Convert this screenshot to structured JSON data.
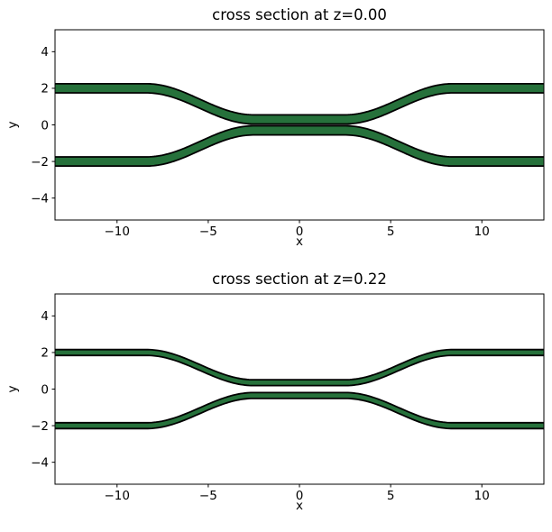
{
  "figure": {
    "background": "#ffffff",
    "edge_color": "#000000",
    "waveguide_fill": "#26713b"
  },
  "chart_data": [
    {
      "type": "area",
      "title": "cross section at z=0.00",
      "xlabel": "x",
      "ylabel": "y",
      "z": "0.00",
      "xlim": [
        -13.4,
        13.4
      ],
      "ylim": [
        -5.2,
        5.2
      ],
      "xticks": [
        -10,
        -5,
        0,
        5,
        10
      ],
      "xtick_labels": [
        "−10",
        "−5",
        "0",
        "5",
        "10"
      ],
      "yticks": [
        4,
        2,
        0,
        -2,
        -4
      ],
      "ytick_labels": [
        "4",
        "2",
        "0",
        "−2",
        "−4"
      ],
      "grid": false,
      "legend": null,
      "series_description": "two mirrored directional-coupler waveguide bands, green fill with black outline",
      "waveguides": {
        "fill": "#26713b",
        "edge": "#000000",
        "outer_center_y": 2.0,
        "inner_center_y": 0.3,
        "band_width": 0.5,
        "coupling_half_length_x": 2.5,
        "sbend_end_x": 8.4
      }
    },
    {
      "type": "area",
      "title": "cross section at z=0.22",
      "xlabel": "x",
      "ylabel": "y",
      "z": "0.22",
      "xlim": [
        -13.4,
        13.4
      ],
      "ylim": [
        -5.2,
        5.2
      ],
      "xticks": [
        -10,
        -5,
        0,
        5,
        10
      ],
      "xtick_labels": [
        "−10",
        "−5",
        "0",
        "5",
        "10"
      ],
      "yticks": [
        4,
        2,
        0,
        -2,
        -4
      ],
      "ytick_labels": [
        "4",
        "2",
        "0",
        "−2",
        "−4"
      ],
      "grid": false,
      "legend": null,
      "series_description": "same coupler cross-section higher in the layer stack: thinner green bands with black outline",
      "waveguides": {
        "fill": "#26713b",
        "edge": "#000000",
        "outer_center_y": 2.0,
        "inner_center_y": 0.35,
        "band_width": 0.32,
        "coupling_half_length_x": 2.5,
        "sbend_end_x": 8.4
      }
    }
  ]
}
